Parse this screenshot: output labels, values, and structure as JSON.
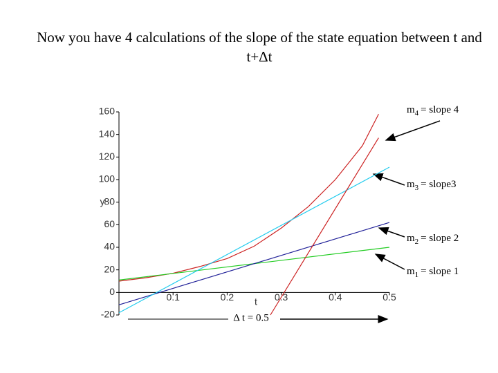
{
  "chart_data": {
    "type": "line",
    "title": "Now you have 4 calculations of the slope of the state equation between t and t+Δt",
    "xlabel": "t",
    "ylabel": "y",
    "xlim": [
      0,
      0.5
    ],
    "ylim": [
      -20,
      160
    ],
    "xticks": [
      0.1,
      0.2,
      0.3,
      0.4,
      0.5
    ],
    "yticks": [
      -20,
      0,
      20,
      40,
      60,
      80,
      100,
      120,
      140,
      160
    ],
    "series": [
      {
        "color": "#cc2222",
        "x": [
          0,
          0.05,
          0.1,
          0.15,
          0.2,
          0.25,
          0.3,
          0.35,
          0.4,
          0.45,
          0.48
        ],
        "values": [
          10,
          13,
          17,
          23,
          30,
          41,
          57,
          76,
          100,
          130,
          158
        ]
      },
      {
        "color": "#22cc22",
        "x": [
          0,
          0.5
        ],
        "values": [
          11,
          40
        ]
      },
      {
        "color": "#222299",
        "x": [
          0,
          0.5
        ],
        "values": [
          -11,
          62
        ]
      },
      {
        "color": "#22ccee",
        "x": [
          0,
          0.5
        ],
        "values": [
          -18,
          111
        ]
      },
      {
        "color": "#cc2222",
        "x": [
          0.28,
          0.48
        ],
        "values": [
          -20,
          137
        ]
      }
    ],
    "annotations": [
      {
        "m": "m",
        "sub": "4",
        "text": "= slope 4"
      },
      {
        "m": "m",
        "sub": "3",
        "text": "= slope3"
      },
      {
        "m": "m",
        "sub": "2",
        "text": "= slope 2"
      },
      {
        "m": "m",
        "sub": "1",
        "text": "= slope 1"
      }
    ],
    "delta_label": "Δ t = 0.5"
  }
}
